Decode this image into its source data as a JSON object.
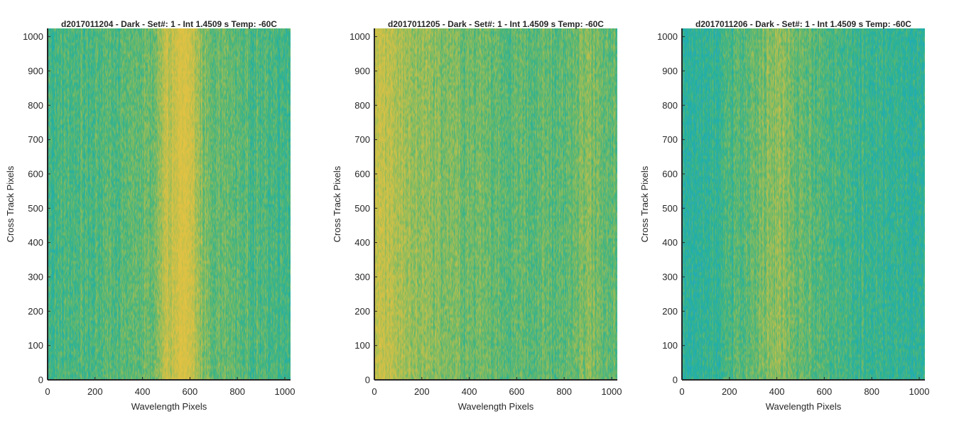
{
  "colors": {
    "colormap": [
      "#2aa6c6",
      "#1fb0a8",
      "#48b57a",
      "#8ebc5d",
      "#c6c04a",
      "#e2c243"
    ],
    "axis": "#262626"
  },
  "chart_data": [
    {
      "type": "heatmap",
      "title": "d2017011204 - Dark - Set#: 1 - Int 1.4509 s Temp: -60C",
      "xlabel": "Wavelength Pixels",
      "ylabel": "Cross Track Pixels",
      "xlim": [
        0,
        1024
      ],
      "ylim": [
        0,
        1024
      ],
      "xticks": [
        0,
        200,
        400,
        600,
        800,
        1000
      ],
      "yticks": [
        0,
        100,
        200,
        300,
        400,
        500,
        600,
        700,
        800,
        900,
        1000
      ],
      "column_profile": {
        "x": [
          0,
          60,
          150,
          250,
          350,
          450,
          500,
          530,
          560,
          580,
          600,
          630,
          660,
          700,
          800,
          900,
          1024
        ],
        "value": [
          0.35,
          0.38,
          0.4,
          0.42,
          0.45,
          0.5,
          0.75,
          0.85,
          0.9,
          0.92,
          0.88,
          0.7,
          0.55,
          0.5,
          0.45,
          0.4,
          0.38
        ]
      }
    },
    {
      "type": "heatmap",
      "title": "d2017011205 - Dark - Set#: 1 - Int 1.4509 s Temp: -60C",
      "xlabel": "Wavelength Pixels",
      "ylabel": "Cross Track Pixels",
      "xlim": [
        0,
        1024
      ],
      "ylim": [
        0,
        1024
      ],
      "xticks": [
        0,
        200,
        400,
        600,
        800,
        1000
      ],
      "yticks": [
        0,
        100,
        200,
        300,
        400,
        500,
        600,
        700,
        800,
        900,
        1000
      ],
      "column_profile": {
        "x": [
          0,
          40,
          100,
          180,
          260,
          350,
          450,
          550,
          650,
          750,
          850,
          900,
          950,
          1024
        ],
        "value": [
          0.78,
          0.8,
          0.72,
          0.65,
          0.58,
          0.52,
          0.48,
          0.46,
          0.45,
          0.44,
          0.5,
          0.58,
          0.48,
          0.45
        ]
      }
    },
    {
      "type": "heatmap",
      "title": "d2017011206 - Dark - Set#: 1 - Int 1.4509 s Temp: -60C",
      "xlabel": "Wavelength Pixels",
      "ylabel": "Cross Track Pixels",
      "xlim": [
        0,
        1024
      ],
      "ylim": [
        0,
        1024
      ],
      "xticks": [
        0,
        200,
        400,
        600,
        800,
        1000
      ],
      "yticks": [
        0,
        100,
        200,
        300,
        400,
        500,
        600,
        700,
        800,
        900,
        1000
      ],
      "column_profile": {
        "x": [
          0,
          50,
          120,
          200,
          280,
          340,
          380,
          420,
          480,
          550,
          650,
          750,
          850,
          950,
          1024
        ],
        "value": [
          0.25,
          0.24,
          0.28,
          0.35,
          0.45,
          0.55,
          0.62,
          0.58,
          0.5,
          0.42,
          0.35,
          0.32,
          0.3,
          0.28,
          0.26
        ]
      }
    }
  ]
}
